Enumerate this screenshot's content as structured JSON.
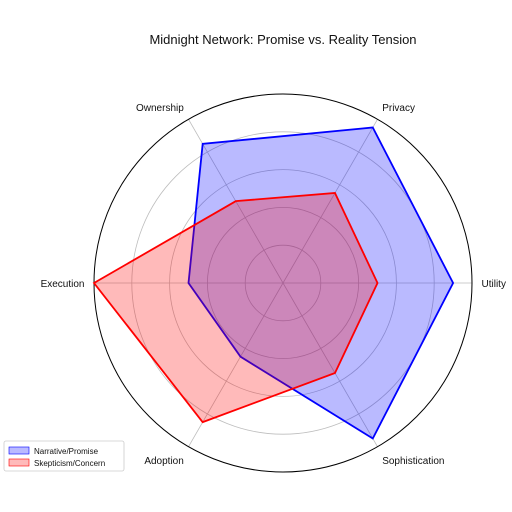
{
  "chart_data": {
    "type": "radar",
    "title": "Midnight Network: Promise vs. Reality Tension",
    "axes": [
      "Utility",
      "Privacy",
      "Ownership",
      "Execution",
      "Adoption",
      "Sophistication"
    ],
    "rlim": [
      0,
      10
    ],
    "grid": true,
    "legend_position": "bottom-left",
    "series": [
      {
        "name": "Narrative/Promise",
        "values": [
          9,
          9.5,
          8.5,
          5,
          4.5,
          9.5
        ],
        "color": "#0000ff",
        "fill": "#0000ff"
      },
      {
        "name": "Skepticism/Concern",
        "values": [
          5,
          5.5,
          5,
          10,
          8.5,
          5.5
        ],
        "color": "#ff0000",
        "fill": "#ff0000"
      }
    ]
  }
}
